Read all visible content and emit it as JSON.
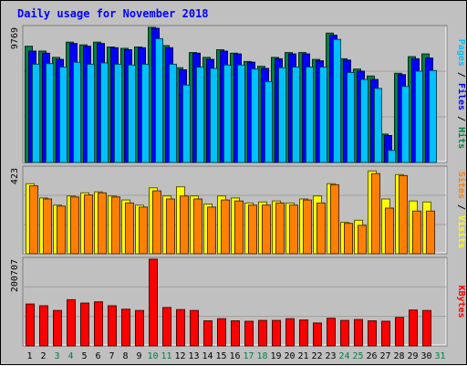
{
  "chart_data": {
    "type": "bar",
    "title": "Daily usage for November 2018",
    "days": [
      "1",
      "2",
      "3",
      "4",
      "5",
      "6",
      "7",
      "8",
      "9",
      "10",
      "11",
      "12",
      "13",
      "14",
      "15",
      "16",
      "17",
      "18",
      "19",
      "20",
      "21",
      "22",
      "23",
      "24",
      "25",
      "26",
      "27",
      "28",
      "29",
      "30",
      "31"
    ],
    "weekend_days": [
      "3",
      "4",
      "10",
      "11",
      "17",
      "18",
      "24",
      "25",
      "31"
    ],
    "colors": {
      "background": "#c0c0c0",
      "title": "#0000ff",
      "hits": "#008040",
      "files": "#0000ff",
      "pages": "#00c0ff",
      "visits": "#ffff00",
      "sites": "#ff8000",
      "kbytes": "#ff0000",
      "weekday_label": "#000000",
      "weekend_label": "#008040"
    },
    "panels": [
      {
        "name": "hits-files-pages",
        "ymax_label": "9769",
        "ymax": 9769,
        "vertical_label": [
          {
            "text": "Pages",
            "color": "#00c0ff"
          },
          {
            "text": " / ",
            "color": "#000000"
          },
          {
            "text": "Files",
            "color": "#0000ff"
          },
          {
            "text": " / ",
            "color": "#000000"
          },
          {
            "text": "Hits",
            "color": "#008040"
          }
        ],
        "series": [
          {
            "name": "Hits",
            "color": "#008040",
            "values": [
              8400,
              8050,
              7600,
              8700,
              8500,
              8700,
              8350,
              8250,
              8350,
              9769,
              8450,
              6850,
              7950,
              7600,
              8150,
              7900,
              7300,
              6950,
              7600,
              7950,
              7950,
              7450,
              9350,
              7500,
              6750,
              6250,
              2050,
              6450,
              7650,
              7850,
              null
            ]
          },
          {
            "name": "Files",
            "color": "#0000ff",
            "values": [
              8050,
              7900,
              7450,
              8600,
              8400,
              8600,
              8300,
              8150,
              8300,
              9700,
              8300,
              6700,
              7900,
              7450,
              8050,
              7850,
              7250,
              6800,
              7500,
              7850,
              7850,
              7350,
              9200,
              7400,
              6600,
              6000,
              1950,
              6350,
              7500,
              7550,
              null
            ]
          },
          {
            "name": "Pages",
            "color": "#00c0ff",
            "values": [
              7100,
              7150,
              6900,
              7250,
              7100,
              7200,
              7100,
              7050,
              7100,
              8950,
              7100,
              5600,
              6900,
              6800,
              7050,
              7050,
              6750,
              5850,
              6850,
              6900,
              6900,
              6900,
              8900,
              6500,
              6000,
              5350,
              880,
              5500,
              6600,
              6650,
              null
            ]
          }
        ]
      },
      {
        "name": "visits-sites",
        "ymax_label": "423",
        "ymax": 423,
        "vertical_label": [
          {
            "text": "Sites",
            "color": "#ff8000"
          },
          {
            "text": " / ",
            "color": "#000000"
          },
          {
            "text": "Visits",
            "color": "#ffff00"
          }
        ],
        "series": [
          {
            "name": "Visits",
            "color": "#ffff00",
            "values": [
              345,
              275,
              240,
              285,
              300,
              305,
              285,
              265,
              240,
              325,
              285,
              330,
              285,
              245,
              285,
              275,
              250,
              255,
              260,
              250,
              270,
              285,
              345,
              155,
              165,
              408,
              270,
              390,
              260,
              255,
              null
            ]
          },
          {
            "name": "Sites",
            "color": "#ff8000",
            "values": [
              335,
              270,
              235,
              280,
              290,
              300,
              280,
              250,
              230,
              310,
              270,
              285,
              270,
              230,
              265,
              260,
              240,
              240,
              250,
              240,
              265,
              250,
              340,
              150,
              140,
              395,
              225,
              385,
              210,
              210,
              null
            ]
          }
        ]
      },
      {
        "name": "kbytes",
        "ymax_label": "200707",
        "ymax": 200707,
        "vertical_label": [
          {
            "text": "KBytes",
            "color": "#ff0000"
          }
        ],
        "series": [
          {
            "name": "KBytes",
            "color": "#ff0000",
            "values": [
              97000,
              93000,
              82000,
              107000,
              99000,
              102000,
              93000,
              85000,
              82000,
              200707,
              89000,
              84000,
              82000,
              58000,
              63000,
              58000,
              57000,
              59000,
              59000,
              63000,
              60000,
              53000,
              64000,
              59000,
              61000,
              58000,
              57000,
              66000,
              83000,
              82000,
              null
            ]
          }
        ]
      }
    ]
  }
}
